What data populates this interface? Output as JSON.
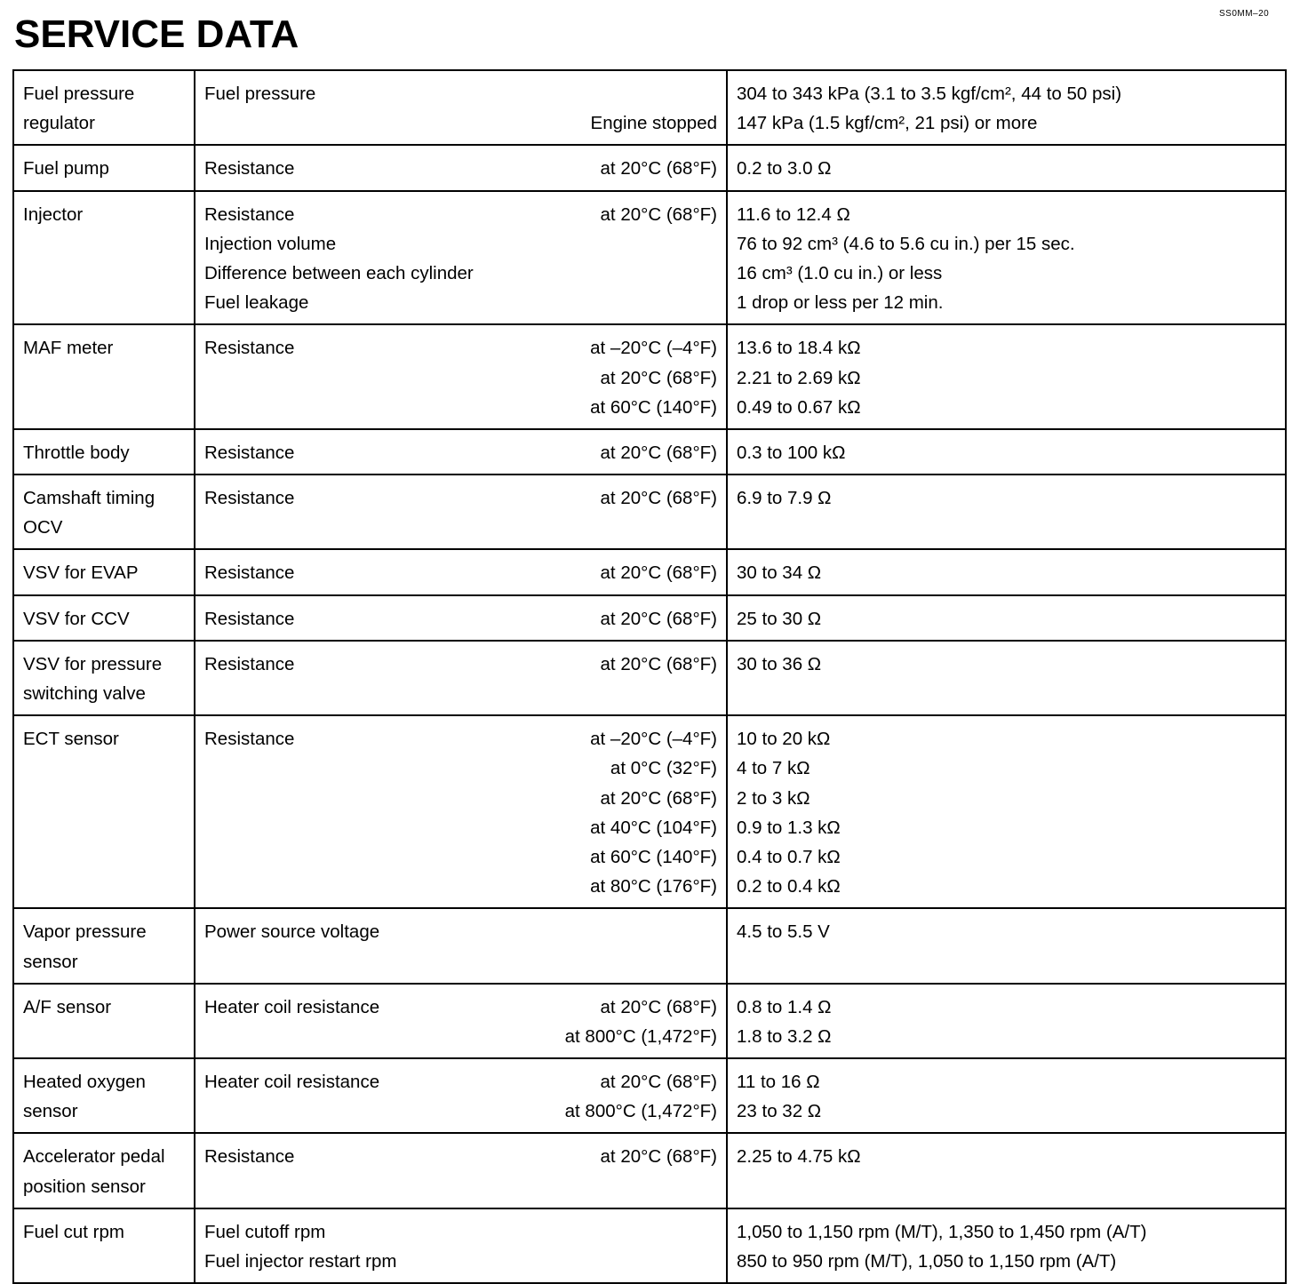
{
  "doc_code": "SS0MM–20",
  "title": "SERVICE DATA",
  "rows": [
    {
      "component": [
        "Fuel pressure",
        "regulator"
      ],
      "lines": [
        {
          "label": "Fuel pressure",
          "condition": "",
          "value": "304 to 343 kPa (3.1 to 3.5 kgf/cm², 44 to 50 psi)"
        },
        {
          "label": "",
          "condition": "Engine stopped",
          "value": "147 kPa (1.5 kgf/cm², 21 psi) or more"
        }
      ]
    },
    {
      "component": [
        "Fuel pump"
      ],
      "lines": [
        {
          "label": "Resistance",
          "condition": "at 20°C (68°F)",
          "value": "0.2 to 3.0 Ω"
        }
      ]
    },
    {
      "component": [
        "Injector"
      ],
      "lines": [
        {
          "label": "Resistance",
          "condition": "at 20°C (68°F)",
          "value": "11.6 to 12.4 Ω"
        },
        {
          "label": "Injection volume",
          "condition": "",
          "value": "76 to 92 cm³ (4.6 to 5.6 cu in.) per 15 sec."
        },
        {
          "label": "Difference between each cylinder",
          "condition": "",
          "value": "16 cm³ (1.0 cu in.) or less"
        },
        {
          "label": "Fuel leakage",
          "condition": "",
          "value": "1 drop or less per 12 min."
        }
      ]
    },
    {
      "component": [
        "MAF meter"
      ],
      "lines": [
        {
          "label": "Resistance",
          "condition": "at –20°C (–4°F)",
          "value": "13.6 to 18.4 kΩ"
        },
        {
          "label": "",
          "condition": "at 20°C (68°F)",
          "value": "2.21 to 2.69 kΩ"
        },
        {
          "label": "",
          "condition": "at 60°C (140°F)",
          "value": "0.49 to 0.67 kΩ"
        }
      ]
    },
    {
      "component": [
        "Throttle body"
      ],
      "lines": [
        {
          "label": "Resistance",
          "condition": "at 20°C (68°F)",
          "value": "0.3 to 100 kΩ"
        }
      ]
    },
    {
      "component": [
        "Camshaft timing",
        "OCV"
      ],
      "lines": [
        {
          "label": "Resistance",
          "condition": "at 20°C (68°F)",
          "value": "6.9 to 7.9 Ω"
        }
      ]
    },
    {
      "component": [
        "VSV for EVAP"
      ],
      "lines": [
        {
          "label": "Resistance",
          "condition": "at 20°C (68°F)",
          "value": "30 to 34 Ω"
        }
      ]
    },
    {
      "component": [
        "VSV for CCV"
      ],
      "lines": [
        {
          "label": "Resistance",
          "condition": "at 20°C (68°F)",
          "value": "25 to 30 Ω"
        }
      ]
    },
    {
      "component": [
        "VSV for pressure",
        "switching valve"
      ],
      "lines": [
        {
          "label": "Resistance",
          "condition": "at 20°C (68°F)",
          "value": "30 to 36 Ω"
        }
      ]
    },
    {
      "component": [
        "ECT sensor"
      ],
      "lines": [
        {
          "label": "Resistance",
          "condition": "at –20°C (–4°F)",
          "value": "10 to 20 kΩ"
        },
        {
          "label": "",
          "condition": "at 0°C (32°F)",
          "value": "4 to 7 kΩ"
        },
        {
          "label": "",
          "condition": "at 20°C (68°F)",
          "value": "2 to 3 kΩ"
        },
        {
          "label": "",
          "condition": "at 40°C (104°F)",
          "value": "0.9 to 1.3 kΩ"
        },
        {
          "label": "",
          "condition": "at 60°C (140°F)",
          "value": "0.4 to 0.7 kΩ"
        },
        {
          "label": "",
          "condition": "at 80°C (176°F)",
          "value": "0.2 to 0.4 kΩ"
        }
      ]
    },
    {
      "component": [
        "Vapor pressure",
        "sensor"
      ],
      "lines": [
        {
          "label": "Power source voltage",
          "condition": "",
          "value": "4.5 to 5.5 V"
        }
      ]
    },
    {
      "component": [
        "A/F sensor"
      ],
      "lines": [
        {
          "label": "Heater coil resistance",
          "condition": "at 20°C (68°F)",
          "value": "0.8 to 1.4 Ω"
        },
        {
          "label": "",
          "condition": "at 800°C (1,472°F)",
          "value": "1.8 to 3.2 Ω"
        }
      ]
    },
    {
      "component": [
        "Heated oxygen",
        "sensor"
      ],
      "lines": [
        {
          "label": "Heater coil resistance",
          "condition": "at 20°C (68°F)",
          "value": "11 to 16 Ω"
        },
        {
          "label": "",
          "condition": "at 800°C (1,472°F)",
          "value": "23 to 32 Ω"
        }
      ]
    },
    {
      "component": [
        "Accelerator pedal",
        "position sensor"
      ],
      "lines": [
        {
          "label": "Resistance",
          "condition": "at 20°C (68°F)",
          "value": "2.25 to 4.75 kΩ"
        }
      ]
    },
    {
      "component": [
        "Fuel cut rpm"
      ],
      "lines": [
        {
          "label": "Fuel cutoff rpm",
          "condition": "",
          "value": "1,050 to 1,150 rpm (M/T), 1,350 to 1,450 rpm (A/T)"
        },
        {
          "label": "Fuel injector restart rpm",
          "condition": "",
          "value": "850 to 950 rpm (M/T), 1,050 to 1,150 rpm (A/T)"
        }
      ]
    }
  ]
}
